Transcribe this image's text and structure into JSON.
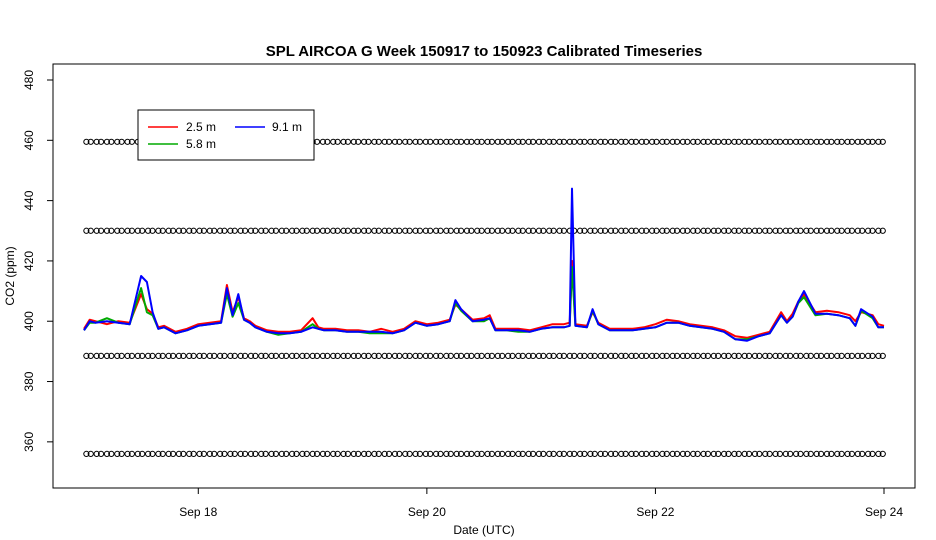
{
  "chart_data": {
    "type": "line",
    "title": "SPL AIRCOA G  Week 150917 to 150923  Calibrated Timeseries",
    "xlabel": "Date (UTC)",
    "ylabel": "CO2 (ppm)",
    "x_unit": "days (Sep 2015)",
    "xlim": [
      17.0,
      24.0
    ],
    "ylim": [
      350,
      480
    ],
    "x_ticks": [
      {
        "value": 18,
        "label": "Sep 18"
      },
      {
        "value": 20,
        "label": "Sep 20"
      },
      {
        "value": 22,
        "label": "Sep 22"
      },
      {
        "value": 24,
        "label": "Sep 24"
      }
    ],
    "y_ticks": [
      {
        "value": 360,
        "label": "360"
      },
      {
        "value": 380,
        "label": "380"
      },
      {
        "value": 400,
        "label": "400"
      },
      {
        "value": 420,
        "label": "420"
      },
      {
        "value": 440,
        "label": "440"
      },
      {
        "value": 460,
        "label": "460"
      },
      {
        "value": 480,
        "label": "480"
      }
    ],
    "legend": {
      "placement": "top-left",
      "entries": [
        {
          "label": "2.5 m",
          "color": "#ff0000"
        },
        {
          "label": "5.8 m",
          "color": "#00aa00"
        },
        {
          "label": "9.1 m",
          "color": "#0000ff"
        }
      ]
    },
    "series": [
      {
        "name": "2.5 m",
        "color": "#ff0000",
        "x": [
          17.0,
          17.05,
          17.1,
          17.2,
          17.3,
          17.4,
          17.5,
          17.55,
          17.6,
          17.65,
          17.7,
          17.8,
          17.9,
          18.0,
          18.1,
          18.2,
          18.25,
          18.3,
          18.35,
          18.4,
          18.45,
          18.5,
          18.6,
          18.7,
          18.8,
          18.9,
          19.0,
          19.05,
          19.1,
          19.2,
          19.3,
          19.4,
          19.5,
          19.6,
          19.7,
          19.8,
          19.9,
          20.0,
          20.1,
          20.2,
          20.25,
          20.3,
          20.4,
          20.5,
          20.55,
          20.6,
          20.7,
          20.8,
          20.9,
          21.0,
          21.1,
          21.2,
          21.25,
          21.27,
          21.3,
          21.4,
          21.45,
          21.5,
          21.6,
          21.7,
          21.8,
          21.9,
          22.0,
          22.1,
          22.2,
          22.3,
          22.4,
          22.5,
          22.6,
          22.7,
          22.8,
          22.9,
          23.0,
          23.1,
          23.15,
          23.2,
          23.25,
          23.3,
          23.4,
          23.5,
          23.6,
          23.7,
          23.75,
          23.8,
          23.9,
          23.95,
          24.0
        ],
        "y": [
          397.5,
          400.5,
          400.0,
          399.0,
          400.0,
          399.5,
          409.0,
          404.0,
          402.5,
          398.0,
          398.5,
          396.5,
          397.5,
          399.0,
          399.5,
          400.0,
          412.0,
          403.0,
          408.0,
          401.0,
          400.0,
          398.5,
          397.0,
          396.5,
          396.5,
          397.0,
          401.0,
          398.0,
          397.5,
          397.5,
          397.0,
          397.0,
          396.5,
          397.5,
          396.5,
          397.5,
          400.0,
          399.0,
          399.5,
          400.5,
          405.5,
          404.0,
          400.5,
          401.0,
          402.0,
          397.5,
          397.5,
          397.5,
          397.0,
          398.0,
          399.0,
          399.0,
          399.5,
          420.0,
          399.0,
          398.5,
          403.0,
          399.5,
          397.5,
          397.5,
          397.5,
          398.0,
          399.0,
          400.5,
          400.0,
          399.0,
          398.5,
          398.0,
          397.0,
          395.0,
          394.5,
          395.5,
          396.5,
          403.0,
          400.0,
          402.5,
          406.5,
          409.0,
          403.0,
          403.5,
          403.0,
          402.0,
          400.0,
          403.0,
          402.0,
          399.0,
          398.5
        ]
      },
      {
        "name": "5.8 m",
        "color": "#00aa00",
        "x": [
          17.0,
          17.05,
          17.1,
          17.2,
          17.3,
          17.4,
          17.5,
          17.55,
          17.6,
          17.65,
          17.7,
          17.8,
          17.9,
          18.0,
          18.1,
          18.2,
          18.25,
          18.3,
          18.35,
          18.4,
          18.45,
          18.5,
          18.6,
          18.7,
          18.8,
          18.9,
          19.0,
          19.05,
          19.1,
          19.2,
          19.3,
          19.4,
          19.5,
          19.6,
          19.7,
          19.8,
          19.9,
          20.0,
          20.1,
          20.2,
          20.25,
          20.3,
          20.4,
          20.5,
          20.55,
          20.6,
          20.7,
          20.8,
          20.9,
          21.0,
          21.1,
          21.2,
          21.25,
          21.27,
          21.3,
          21.4,
          21.45,
          21.5,
          21.6,
          21.7,
          21.8,
          21.9,
          22.0,
          22.1,
          22.2,
          22.3,
          22.4,
          22.5,
          22.6,
          22.7,
          22.8,
          22.9,
          23.0,
          23.1,
          23.15,
          23.2,
          23.25,
          23.3,
          23.4,
          23.5,
          23.6,
          23.7,
          23.75,
          23.8,
          23.9,
          23.95,
          24.0
        ],
        "y": [
          397.0,
          399.5,
          399.5,
          401.0,
          399.5,
          399.0,
          411.0,
          403.0,
          402.0,
          397.5,
          398.0,
          396.0,
          397.0,
          398.5,
          399.0,
          399.5,
          409.0,
          401.5,
          406.0,
          400.5,
          399.5,
          398.0,
          396.5,
          395.5,
          396.0,
          396.5,
          399.0,
          397.5,
          397.0,
          397.0,
          396.5,
          396.5,
          396.0,
          396.0,
          396.0,
          397.0,
          399.5,
          398.5,
          399.0,
          400.0,
          406.0,
          403.5,
          400.0,
          400.0,
          401.0,
          397.0,
          397.0,
          396.5,
          396.5,
          397.5,
          398.0,
          398.0,
          398.5,
          418.0,
          398.5,
          398.0,
          403.5,
          399.0,
          397.0,
          397.0,
          397.0,
          397.5,
          398.0,
          399.5,
          399.5,
          398.5,
          398.0,
          397.5,
          396.5,
          394.0,
          394.0,
          395.0,
          396.0,
          402.0,
          399.5,
          401.5,
          406.0,
          408.0,
          402.0,
          402.5,
          402.0,
          401.0,
          398.5,
          403.5,
          401.0,
          398.0,
          398.0
        ]
      },
      {
        "name": "9.1 m",
        "color": "#0000ff",
        "x": [
          17.0,
          17.05,
          17.1,
          17.2,
          17.3,
          17.4,
          17.5,
          17.55,
          17.6,
          17.65,
          17.7,
          17.8,
          17.9,
          18.0,
          18.1,
          18.2,
          18.25,
          18.3,
          18.35,
          18.4,
          18.45,
          18.5,
          18.6,
          18.7,
          18.8,
          18.9,
          19.0,
          19.05,
          19.1,
          19.2,
          19.3,
          19.4,
          19.5,
          19.6,
          19.7,
          19.8,
          19.9,
          20.0,
          20.1,
          20.2,
          20.25,
          20.3,
          20.4,
          20.5,
          20.55,
          20.6,
          20.7,
          20.8,
          20.9,
          21.0,
          21.1,
          21.2,
          21.25,
          21.27,
          21.3,
          21.4,
          21.45,
          21.5,
          21.6,
          21.7,
          21.8,
          21.9,
          22.0,
          22.1,
          22.2,
          22.3,
          22.4,
          22.5,
          22.6,
          22.7,
          22.8,
          22.9,
          23.0,
          23.1,
          23.15,
          23.2,
          23.25,
          23.3,
          23.4,
          23.5,
          23.6,
          23.7,
          23.75,
          23.8,
          23.9,
          23.95,
          24.0
        ],
        "y": [
          397.0,
          400.0,
          399.5,
          400.0,
          399.5,
          399.0,
          415.0,
          413.0,
          403.0,
          397.5,
          398.0,
          396.0,
          397.0,
          398.5,
          399.0,
          399.5,
          411.0,
          402.0,
          409.0,
          400.5,
          399.5,
          398.0,
          396.5,
          396.0,
          396.0,
          396.5,
          398.0,
          397.5,
          397.0,
          397.0,
          396.5,
          396.5,
          396.5,
          396.5,
          396.0,
          397.0,
          399.5,
          398.5,
          399.0,
          400.0,
          407.0,
          404.0,
          400.0,
          400.5,
          401.0,
          397.0,
          397.0,
          397.0,
          396.5,
          397.5,
          398.0,
          398.0,
          398.5,
          444.0,
          398.5,
          398.0,
          404.0,
          399.0,
          397.0,
          397.0,
          397.0,
          397.5,
          398.0,
          399.5,
          399.5,
          398.5,
          398.0,
          397.5,
          396.5,
          394.0,
          393.5,
          395.0,
          396.0,
          402.0,
          399.5,
          401.5,
          406.5,
          410.0,
          402.5,
          402.5,
          402.0,
          401.0,
          398.5,
          404.0,
          401.5,
          398.0,
          398.0
        ]
      }
    ],
    "reference_markers": {
      "symbol": "o",
      "levels": [
        459.5,
        430.0,
        388.5,
        356.0
      ],
      "x_spacing_days": 0.09
    }
  }
}
